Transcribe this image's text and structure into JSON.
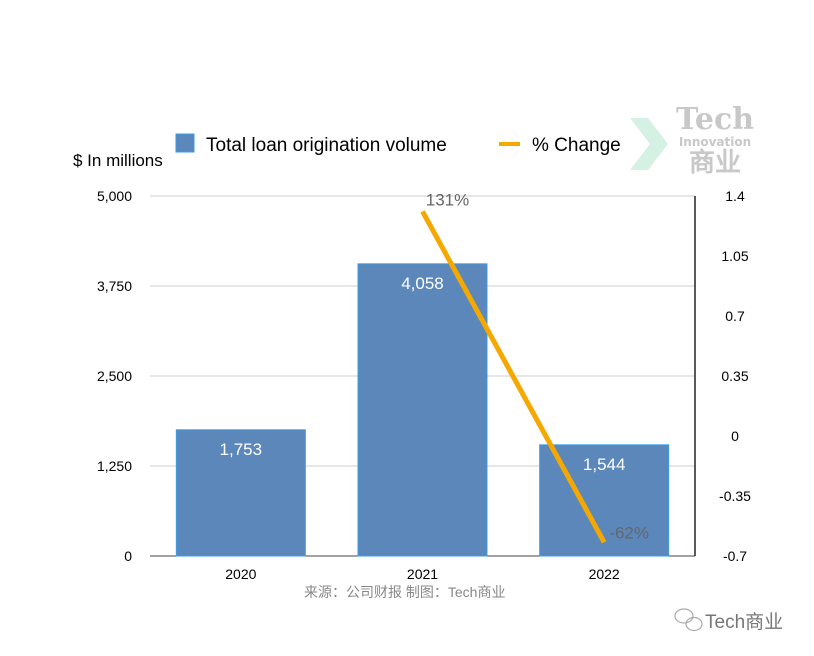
{
  "chart_data": {
    "type": "bar",
    "categories": [
      "2020",
      "2021",
      "2022"
    ],
    "series": [
      {
        "name": "Total loan origination volume",
        "type": "bar",
        "axis": "left",
        "values": [
          1753,
          4058,
          1544
        ],
        "labels": [
          "1,753",
          "4,058",
          "1,544"
        ],
        "color": "#5b87bb"
      },
      {
        "name": "% Change",
        "type": "line",
        "axis": "right",
        "values": [
          null,
          1.31,
          -0.62
        ],
        "labels": [
          "",
          "131%",
          "-62%"
        ],
        "color": "#f5a800"
      }
    ],
    "ylabel": "$ In millions",
    "ylim": [
      0,
      5000
    ],
    "yticks": [
      "0",
      "1,250",
      "2,500",
      "3,750",
      "5,000"
    ],
    "ytick_values": [
      0,
      1250,
      2500,
      3750,
      5000
    ],
    "y2lim": [
      -0.7,
      1.4
    ],
    "y2ticks": [
      "-0.7",
      "-0.35",
      "0",
      "0.35",
      "0.7",
      "1.05",
      "1.4"
    ],
    "y2tick_values": [
      -0.7,
      -0.35,
      0,
      0.35,
      0.7,
      1.05,
      1.4
    ],
    "grid": true,
    "legend_position": "top"
  },
  "source": "来源：公司财报 制图：Tech商业",
  "watermark": {
    "line1": "Tech",
    "line2": "Innovation",
    "line3": "商业"
  },
  "footer_brand": "Tech商业"
}
